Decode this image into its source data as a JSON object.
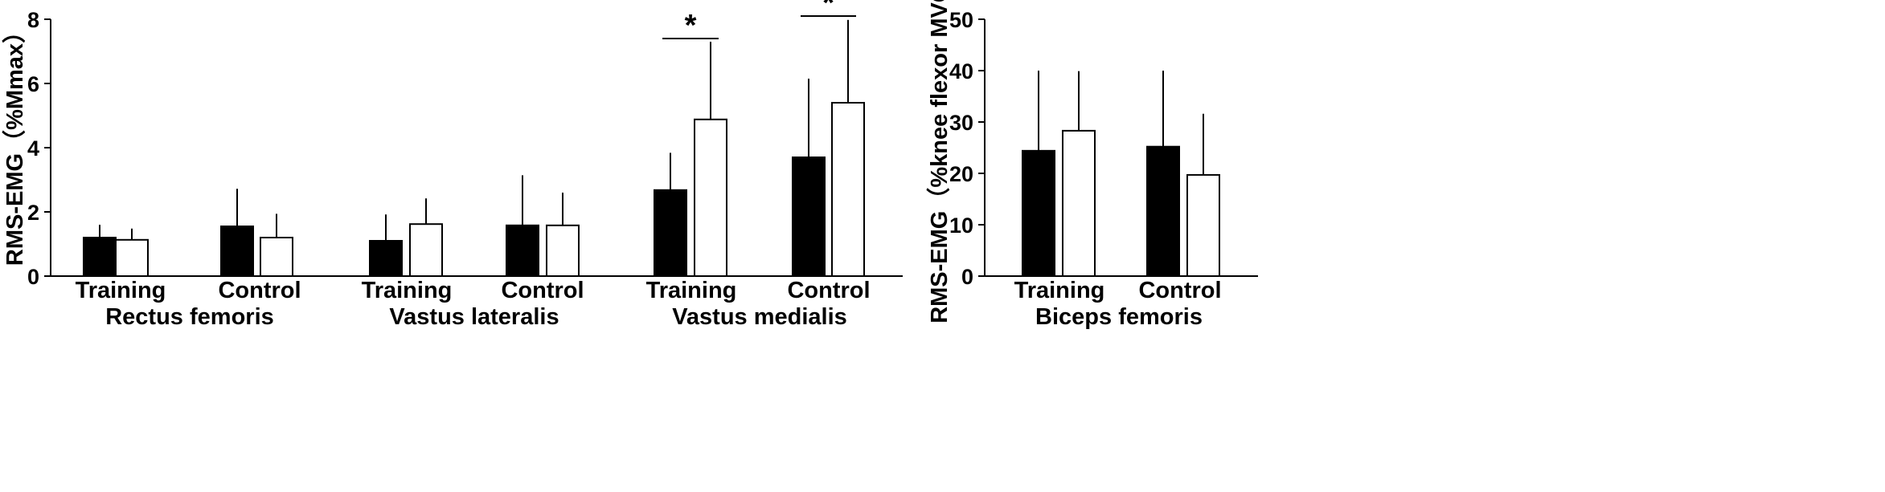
{
  "colors": {
    "training_bar": "#000000",
    "control_bar": "#ffffff",
    "stroke": "#000000"
  },
  "chart_data": [
    {
      "type": "bar",
      "title": "Rectus femoris",
      "ylabel": "RMS-EMG（%Mmax）",
      "ylim": [
        0,
        8
      ],
      "yticks": [
        0,
        2,
        4,
        6,
        8
      ],
      "categories": [
        "Training",
        "Control"
      ],
      "series": [
        {
          "fill": "black",
          "values": [
            1.2,
            1.55
          ],
          "error": [
            0.4,
            1.17
          ]
        },
        {
          "fill": "white",
          "values": [
            1.13,
            1.2
          ],
          "error": [
            0.35,
            0.74
          ]
        }
      ],
      "significance": []
    },
    {
      "type": "bar",
      "title": "Vastus lateralis",
      "ylim": [
        0,
        8
      ],
      "categories": [
        "Training",
        "Control"
      ],
      "series": [
        {
          "fill": "black",
          "values": [
            1.1,
            1.58
          ],
          "error": [
            0.82,
            1.56
          ]
        },
        {
          "fill": "white",
          "values": [
            1.62,
            1.58
          ],
          "error": [
            0.8,
            1.02
          ]
        }
      ],
      "significance": []
    },
    {
      "type": "bar",
      "title": "Vastus medialis",
      "ylim": [
        0,
        8
      ],
      "categories": [
        "Training",
        "Control"
      ],
      "series": [
        {
          "fill": "black",
          "values": [
            2.68,
            3.7
          ],
          "error": [
            1.16,
            2.45
          ]
        },
        {
          "fill": "white",
          "values": [
            4.88,
            5.4
          ],
          "error": [
            2.42,
            2.58
          ]
        }
      ],
      "significance": [
        {
          "category": 0,
          "label": "*",
          "y": 7.4
        },
        {
          "category": 1,
          "label": "*",
          "y": 8.1
        }
      ]
    },
    {
      "type": "bar",
      "title": "Biceps femoris",
      "ylabel": "RMS-EMG（%knee flexor MVC）",
      "ylim": [
        0,
        50
      ],
      "yticks": [
        0,
        10,
        20,
        30,
        40,
        50
      ],
      "categories": [
        "Training",
        "Control"
      ],
      "series": [
        {
          "fill": "black",
          "values": [
            24.4,
            25.2
          ],
          "error": [
            15.6,
            14.8
          ]
        },
        {
          "fill": "white",
          "values": [
            28.3,
            19.7
          ],
          "error": [
            11.6,
            11.9
          ]
        }
      ],
      "significance": []
    }
  ]
}
